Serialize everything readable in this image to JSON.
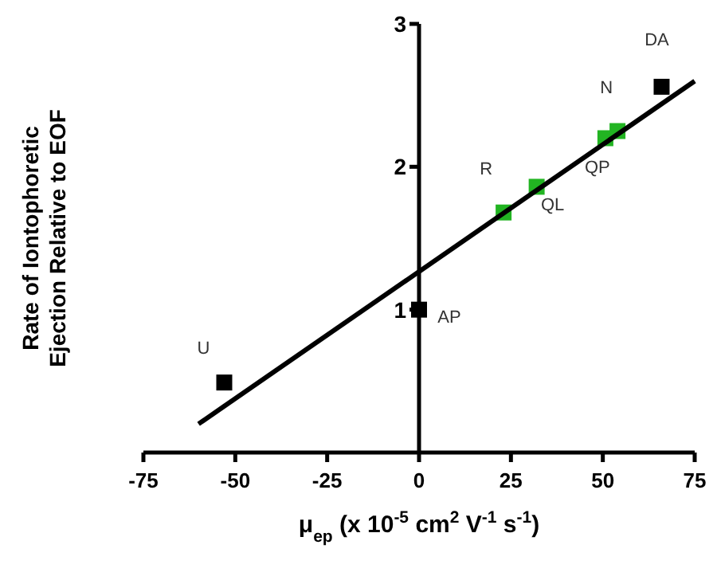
{
  "chart_data": {
    "type": "scatter",
    "xlabel": "μ$_{ep}$ (x 10$^{-5}$ cm$^{2}$ V$^{-1}$ s$^{-1}$)",
    "ylabel": "Rate of Iontophoretic\nEjection Relative to EOF",
    "xlim": [
      -75,
      75
    ],
    "xticks": [
      -75,
      -50,
      -25,
      0,
      25,
      50,
      75
    ],
    "ylim": [
      0,
      3
    ],
    "yticks": [
      1,
      2,
      3
    ],
    "grid": false,
    "series": [
      {
        "color": "#000000",
        "marker": "square",
        "x": [
          -53,
          0,
          66
        ],
        "values": [
          0.49,
          1.0,
          2.56
        ]
      },
      {
        "color": "#22b422",
        "marker": "square",
        "x": [
          23,
          32,
          50.7,
          54
        ],
        "values": [
          1.68,
          1.86,
          2.2,
          2.25
        ]
      },
      {
        "type": "line",
        "color": "#000000",
        "x": [
          -60,
          75
        ],
        "values": [
          0.2,
          2.6
        ]
      }
    ],
    "annotations": [
      {
        "text": "U",
        "x": -53,
        "y": 0.49
      },
      {
        "text": "AP",
        "x": 0,
        "y": 1.0
      },
      {
        "text": "R",
        "x": 23,
        "y": 1.68
      },
      {
        "text": "QL",
        "x": 32,
        "y": 1.86
      },
      {
        "text": "QP",
        "x": 50.7,
        "y": 2.2
      },
      {
        "text": "N",
        "x": 54,
        "y": 2.25
      },
      {
        "text": "DA",
        "x": 66,
        "y": 2.56
      }
    ]
  }
}
